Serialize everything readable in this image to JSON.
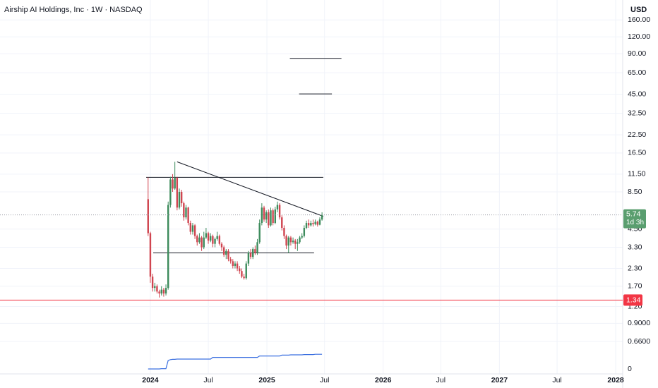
{
  "chart_data": {
    "type": "candlestick",
    "title": "Airship AI Holdings, Inc · 1W · NASDAQ",
    "currency": "USD",
    "log_scale": true,
    "grid": true,
    "up_color": "#3d8b5c",
    "down_color": "#d04550",
    "x": [
      "2023-12-25",
      "2024-01-01",
      "2024-01-08",
      "2024-01-15",
      "2024-01-22",
      "2024-01-29",
      "2024-02-05",
      "2024-02-12",
      "2024-02-19",
      "2024-02-26",
      "2024-03-04",
      "2024-03-11",
      "2024-03-18",
      "2024-03-25",
      "2024-04-01",
      "2024-04-08",
      "2024-04-15",
      "2024-04-22",
      "2024-04-29",
      "2024-05-06",
      "2024-05-13",
      "2024-05-20",
      "2024-05-27",
      "2024-06-03",
      "2024-06-10",
      "2024-06-17",
      "2024-06-24",
      "2024-07-01",
      "2024-07-08",
      "2024-07-15",
      "2024-07-22",
      "2024-07-29",
      "2024-08-05",
      "2024-08-12",
      "2024-08-19",
      "2024-08-26",
      "2024-09-02",
      "2024-09-09",
      "2024-09-16",
      "2024-09-23",
      "2024-09-30",
      "2024-10-07",
      "2024-10-14",
      "2024-10-21",
      "2024-10-28",
      "2024-11-04",
      "2024-11-11",
      "2024-11-18",
      "2024-11-25",
      "2024-12-02",
      "2024-12-09",
      "2024-12-16",
      "2024-12-23",
      "2024-12-30",
      "2025-01-06",
      "2025-01-13",
      "2025-01-20",
      "2025-01-27",
      "2025-02-03",
      "2025-02-10",
      "2025-02-17",
      "2025-02-24",
      "2025-03-03",
      "2025-03-10",
      "2025-03-17",
      "2025-03-24",
      "2025-03-31",
      "2025-04-07",
      "2025-04-14",
      "2025-04-21",
      "2025-04-28",
      "2025-05-05",
      "2025-05-12",
      "2025-05-19",
      "2025-05-26",
      "2025-06-02",
      "2025-06-09",
      "2025-06-16",
      "2025-06-23"
    ],
    "open": [
      7.5,
      4.2,
      2.0,
      1.65,
      1.7,
      1.55,
      1.5,
      1.6,
      1.5,
      1.65,
      6.8,
      10.5,
      9.0,
      10.8,
      6.5,
      8.5,
      7.0,
      5.5,
      6.5,
      5.0,
      4.3,
      4.8,
      4.0,
      3.6,
      3.9,
      3.3,
      3.9,
      4.2,
      3.7,
      4.0,
      3.5,
      3.8,
      4.0,
      3.5,
      3.3,
      2.9,
      3.1,
      2.7,
      2.6,
      2.4,
      2.5,
      2.3,
      2.2,
      2.0,
      1.95,
      2.5,
      3.0,
      2.8,
      3.2,
      3.0,
      3.6,
      5.0,
      6.5,
      5.3,
      6.0,
      4.8,
      6.2,
      5.0,
      6.3,
      6.8,
      5.5,
      4.6,
      4.0,
      3.4,
      3.9,
      3.6,
      3.7,
      3.5,
      3.6,
      3.9,
      4.0,
      4.6,
      5.0,
      4.8,
      5.0,
      4.9,
      5.1,
      4.85,
      5.3
    ],
    "high": [
      10.9,
      4.3,
      2.1,
      1.8,
      1.75,
      1.6,
      1.7,
      1.65,
      1.75,
      7.2,
      11.0,
      11.5,
      14.2,
      11.0,
      9.0,
      8.8,
      7.2,
      6.8,
      6.6,
      5.2,
      5.0,
      4.9,
      4.1,
      4.2,
      4.0,
      4.3,
      4.6,
      4.3,
      4.2,
      4.1,
      3.9,
      4.3,
      4.1,
      3.6,
      3.4,
      3.2,
      3.2,
      2.8,
      2.7,
      2.6,
      2.6,
      2.4,
      2.3,
      2.1,
      2.6,
      3.1,
      3.2,
      3.3,
      3.4,
      3.8,
      5.3,
      7.0,
      6.7,
      6.2,
      6.3,
      6.5,
      6.4,
      6.6,
      7.2,
      7.0,
      5.7,
      4.8,
      4.1,
      4.0,
      4.0,
      3.9,
      3.8,
      3.8,
      4.0,
      4.2,
      4.8,
      5.2,
      5.3,
      5.2,
      5.3,
      5.3,
      5.2,
      5.5,
      6.0
    ],
    "low": [
      4.0,
      1.8,
      1.55,
      1.55,
      1.5,
      1.4,
      1.45,
      1.42,
      1.45,
      1.6,
      6.5,
      8.5,
      8.8,
      6.2,
      6.3,
      6.6,
      5.2,
      5.3,
      4.8,
      4.1,
      4.1,
      3.8,
      3.4,
      3.5,
      3.1,
      3.2,
      3.8,
      3.5,
      3.6,
      3.3,
      3.3,
      3.7,
      3.4,
      3.1,
      2.8,
      2.7,
      2.6,
      2.5,
      2.3,
      2.3,
      2.2,
      2.1,
      1.95,
      1.9,
      1.9,
      2.4,
      2.7,
      2.7,
      2.9,
      2.9,
      3.5,
      4.8,
      5.1,
      5.0,
      4.6,
      4.7,
      4.8,
      4.9,
      6.0,
      5.3,
      4.4,
      3.8,
      3.2,
      3.0,
      3.4,
      3.5,
      3.2,
      3.1,
      3.5,
      3.8,
      3.9,
      4.5,
      4.6,
      4.7,
      4.7,
      4.8,
      4.7,
      4.8,
      5.2
    ],
    "close": [
      4.2,
      2.0,
      1.65,
      1.7,
      1.55,
      1.5,
      1.6,
      1.5,
      1.65,
      6.8,
      10.5,
      9.0,
      10.8,
      6.5,
      8.5,
      7.0,
      5.5,
      6.5,
      5.0,
      4.3,
      4.8,
      4.0,
      3.6,
      3.9,
      3.3,
      3.9,
      4.2,
      3.7,
      4.0,
      3.5,
      3.8,
      4.0,
      3.5,
      3.3,
      2.9,
      3.1,
      2.7,
      2.6,
      2.4,
      2.5,
      2.3,
      2.2,
      2.0,
      1.95,
      2.5,
      3.0,
      2.8,
      3.2,
      3.0,
      3.6,
      5.0,
      6.5,
      5.3,
      6.0,
      4.8,
      6.2,
      5.0,
      6.3,
      6.8,
      5.5,
      4.6,
      4.0,
      3.4,
      3.9,
      3.6,
      3.7,
      3.5,
      3.6,
      3.9,
      4.0,
      4.6,
      5.0,
      4.8,
      5.0,
      4.9,
      5.1,
      4.85,
      5.3,
      5.74
    ],
    "indicator": {
      "color": "#3a6fe0",
      "axis": "y2",
      "values": [
        0,
        0,
        0,
        0,
        0,
        0,
        1,
        1,
        1,
        30,
        33,
        34,
        34,
        35,
        35,
        35,
        35,
        35,
        35,
        35,
        35,
        35,
        35,
        35,
        35,
        35,
        35,
        35,
        35,
        41,
        41,
        41,
        41,
        41,
        41,
        41,
        41,
        41,
        41,
        41,
        41,
        41,
        41,
        41,
        41,
        41,
        41,
        41,
        41,
        41,
        46,
        46,
        46,
        46,
        46,
        46,
        46,
        46,
        46,
        46,
        49,
        49,
        49,
        49,
        50,
        50,
        50,
        50,
        50,
        50,
        51,
        51,
        51,
        51,
        51,
        52,
        52,
        52,
        52
      ]
    },
    "countdown": "1d 3h",
    "last_price_color": "#5a9e6f",
    "alert_line": {
      "value": 1.34,
      "color": "#f23645"
    },
    "drawings": [
      {
        "x": [
          "2023-12-19",
          "2025-06-27"
        ],
        "y": [
          10.9,
          10.9
        ]
      },
      {
        "x": [
          "2024-01-10",
          "2025-05-29"
        ],
        "y": [
          3.0,
          3.0
        ]
      },
      {
        "x": [
          "2024-03-25",
          "2025-06-27"
        ],
        "y": [
          14.2,
          5.6
        ]
      },
      {
        "x": [
          "2025-03-14",
          "2025-08-23"
        ],
        "y": [
          83,
          83
        ]
      },
      {
        "x": [
          "2025-04-12",
          "2025-07-24"
        ],
        "y": [
          45.3,
          45.3
        ]
      }
    ],
    "xlim": [
      "2022-09-16",
      "2028-01-23"
    ],
    "xticks": [
      {
        "value": "2024-01-01",
        "label": "2024"
      },
      {
        "value": "2024-07-01",
        "label": "Jul"
      },
      {
        "value": "2025-01-01",
        "label": "2025"
      },
      {
        "value": "2025-07-01",
        "label": "Jul"
      },
      {
        "value": "2026-01-01",
        "label": "2026"
      },
      {
        "value": "2026-07-01",
        "label": "Jul"
      },
      {
        "value": "2027-01-01",
        "label": "2027"
      },
      {
        "value": "2027-07-01",
        "label": "Jul"
      },
      {
        "value": "2028-01-01",
        "label": "2028"
      }
    ],
    "ylim": [
      0.38,
      225
    ],
    "yticks": [
      {
        "value": 160,
        "label": "160.00"
      },
      {
        "value": 120,
        "label": "120.00"
      },
      {
        "value": 90,
        "label": "90.00"
      },
      {
        "value": 65,
        "label": "65.00"
      },
      {
        "value": 45,
        "label": "45.00"
      },
      {
        "value": 32.5,
        "label": "32.50"
      },
      {
        "value": 22.5,
        "label": "22.50"
      },
      {
        "value": 16.5,
        "label": "16.50"
      },
      {
        "value": 11.5,
        "label": "11.50"
      },
      {
        "value": 8.5,
        "label": "8.50"
      },
      {
        "value": 4.5,
        "label": "4.50"
      },
      {
        "value": 3.3,
        "label": "3.30"
      },
      {
        "value": 2.3,
        "label": "2.30"
      },
      {
        "value": 1.7,
        "label": "1.70"
      },
      {
        "value": 1.2,
        "label": "1.20"
      },
      {
        "value": 0.9,
        "label": "0.9000"
      },
      {
        "value": 0.66,
        "label": "0.6600"
      }
    ],
    "y2lim": [
      0,
      100
    ],
    "y2ticks": [
      0
    ]
  }
}
